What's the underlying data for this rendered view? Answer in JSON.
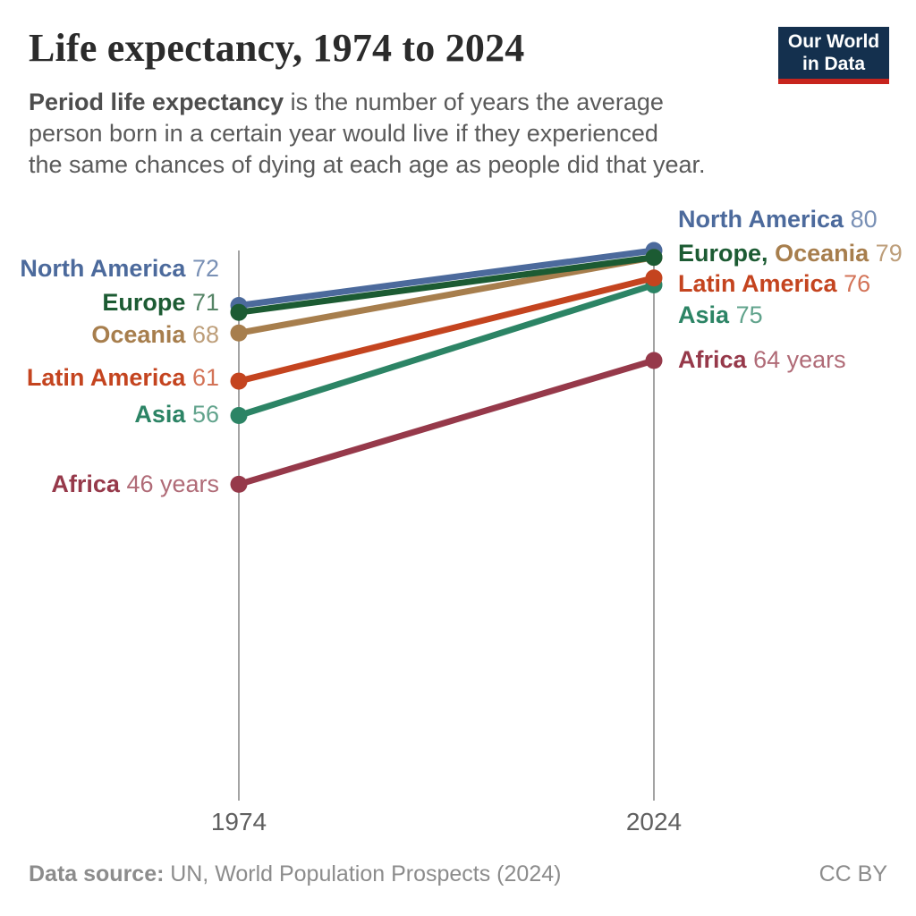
{
  "header": {
    "title": "Life expectancy, 1974 to 2024",
    "subtitle_bold": "Period life expectancy",
    "subtitle_line1_rest": " is the number of years the average",
    "subtitle_line2": "person born in a certain year would live if they experienced",
    "subtitle_line3": "the same chances of dying at each age as people did that year.",
    "logo": {
      "line1": "Our World",
      "line2": "in Data",
      "bg_color": "#14304E",
      "stripe_color": "#C7241D",
      "text_color": "#FFFFFF"
    }
  },
  "chart_data": {
    "type": "slope",
    "title": "Life expectancy, 1974 to 2024",
    "x_categories": [
      "1974",
      "2024"
    ],
    "y_range": [
      0,
      80
    ],
    "y_unit": "years",
    "grid": "off",
    "axis_color": "#A3A3A3",
    "series": [
      {
        "name": "North America",
        "color": "#4C6A9C",
        "value_color": "#7990B5",
        "values": {
          "1974": 72,
          "2024": 80
        }
      },
      {
        "name": "Europe",
        "color": "#1C5B33",
        "value_color": "#558466",
        "values": {
          "1974": 71,
          "2024": 79
        }
      },
      {
        "name": "Oceania",
        "color": "#A77E4D",
        "value_color": "#BD9E7A",
        "values": {
          "1974": 68,
          "2024": 79
        }
      },
      {
        "name": "Latin America",
        "color": "#C4441F",
        "value_color": "#D37357",
        "values": {
          "1974": 61,
          "2024": 76
        }
      },
      {
        "name": "Asia",
        "color": "#2C8465",
        "value_color": "#61A38C",
        "values": {
          "1974": 56,
          "2024": 75
        }
      },
      {
        "name": "Africa",
        "color": "#96394A",
        "value_color": "#B06B77",
        "values": {
          "1974": 46,
          "2024": 64
        }
      }
    ],
    "left_labels": [
      {
        "name": "North America",
        "value": "72"
      },
      {
        "name": "Europe",
        "value": "71"
      },
      {
        "name": "Oceania",
        "value": "68"
      },
      {
        "name": "Latin America",
        "value": "61"
      },
      {
        "name": "Asia",
        "value": "56"
      },
      {
        "name": "Africa",
        "value": "46 years"
      }
    ],
    "right_labels": [
      {
        "name": "North America",
        "value": "80"
      },
      {
        "name": "Europe,",
        "name2": "Oceania",
        "value": "79"
      },
      {
        "name": "Latin America",
        "value": "76"
      },
      {
        "name": "Asia",
        "value": "75"
      },
      {
        "name": "Africa",
        "value": "64 years"
      }
    ]
  },
  "footer": {
    "source_label": "Data source:",
    "source_text": "UN, World Population Prospects (2024)",
    "license": "CC BY"
  }
}
